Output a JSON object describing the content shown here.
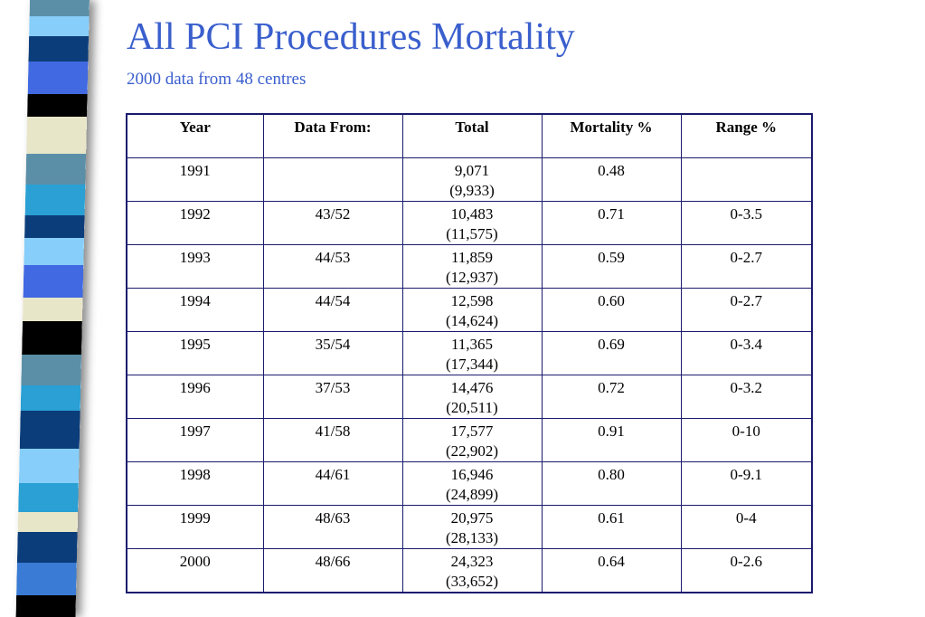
{
  "header": {
    "title": "All PCI Procedures Mortality",
    "subtitle": "2000 data from 48 centres"
  },
  "colors": {
    "title": "#3A5FCD",
    "table_border": "#1a1a6e",
    "strip": [
      "#000000",
      "#4169E1",
      "#1E90FF",
      "#5B8FA8",
      "#E8E6C8",
      "#87CEFA",
      "#0B3D7A",
      "#3A7BD5",
      "#2AA0D4"
    ]
  },
  "table": {
    "columns": [
      "Year",
      "Data From:",
      "Total",
      "Mortality %",
      "Range %"
    ],
    "rows": [
      {
        "year": "1991",
        "data_from": "",
        "total": "9,071",
        "total_sub": "(9,933)",
        "mortality": "0.48",
        "range": ""
      },
      {
        "year": "1992",
        "data_from": "43/52",
        "total": "10,483",
        "total_sub": "(11,575)",
        "mortality": "0.71",
        "range": "0-3.5"
      },
      {
        "year": "1993",
        "data_from": "44/53",
        "total": "11,859",
        "total_sub": "(12,937)",
        "mortality": "0.59",
        "range": "0-2.7"
      },
      {
        "year": "1994",
        "data_from": "44/54",
        "total": "12,598",
        "total_sub": "(14,624)",
        "mortality": "0.60",
        "range": "0-2.7"
      },
      {
        "year": "1995",
        "data_from": "35/54",
        "total": "11,365",
        "total_sub": "(17,344)",
        "mortality": "0.69",
        "range": "0-3.4"
      },
      {
        "year": "1996",
        "data_from": "37/53",
        "total": "14,476",
        "total_sub": "(20,511)",
        "mortality": "0.72",
        "range": "0-3.2"
      },
      {
        "year": "1997",
        "data_from": "41/58",
        "total": "17,577",
        "total_sub": "(22,902)",
        "mortality": "0.91",
        "range": "0-10"
      },
      {
        "year": "1998",
        "data_from": "44/61",
        "total": "16,946",
        "total_sub": "(24,899)",
        "mortality": "0.80",
        "range": "0-9.1"
      },
      {
        "year": "1999",
        "data_from": "48/63",
        "total": "20,975",
        "total_sub": "(28,133)",
        "mortality": "0.61",
        "range": "0-4"
      },
      {
        "year": "2000",
        "data_from": "48/66",
        "total": "24,323",
        "total_sub": "(33,652)",
        "mortality": "0.64",
        "range": "0-2.6"
      }
    ]
  }
}
